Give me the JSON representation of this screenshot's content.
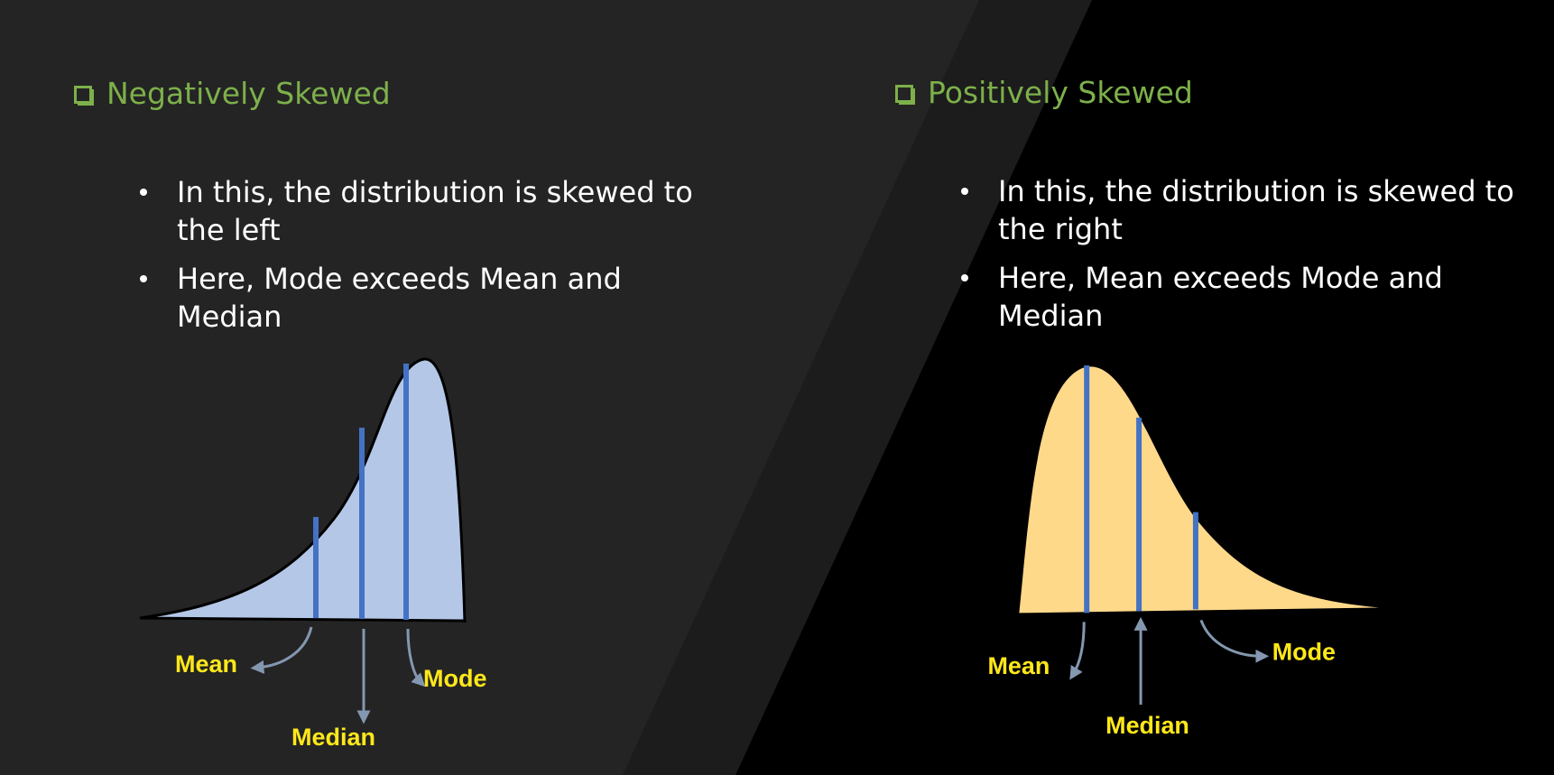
{
  "left": {
    "heading": "Negatively Skewed",
    "bullets": [
      "In this, the distribution is skewed to the left",
      "Here, Mode exceeds Mean and Median"
    ],
    "labels": {
      "mean": "Mean",
      "median": "Median",
      "mode": "Mode"
    },
    "curve_color": "#b4c7e7"
  },
  "right": {
    "heading": "Positively Skewed",
    "bullets": [
      "In this, the distribution is skewed to the right",
      "Here, Mean exceeds Mode and Median"
    ],
    "labels": {
      "mean": "Mean",
      "median": "Median",
      "mode": "Mode"
    },
    "curve_color": "#ffd98a"
  },
  "colors": {
    "heading": "#7db04a",
    "marker_lines": "#4472c4",
    "label_text": "#ffe81a",
    "arrow": "#8497b0"
  },
  "icons": [
    "checkbox-icon",
    "arrow-icon"
  ]
}
